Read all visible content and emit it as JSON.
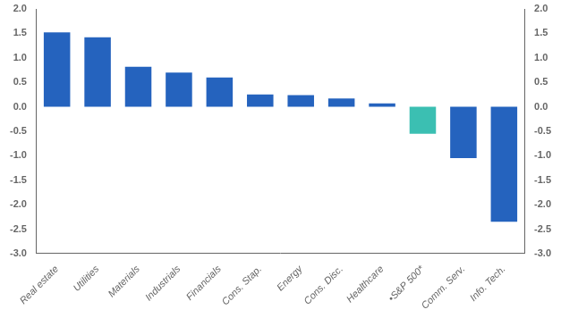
{
  "chart_data": {
    "type": "bar",
    "categories": [
      "Real estate",
      "Utilities",
      "Materials",
      "Industrials",
      "Financials",
      "Cons. Stap.",
      "Energy",
      "Cons. Disc.",
      "Healthcare",
      "•S&P 500*",
      "Comm. Serv.",
      "Info. Tech."
    ],
    "values": [
      1.52,
      1.42,
      0.82,
      0.7,
      0.6,
      0.25,
      0.24,
      0.17,
      0.07,
      -0.55,
      -1.05,
      -2.35
    ],
    "colors": [
      "#2563be",
      "#2563be",
      "#2563be",
      "#2563be",
      "#2563be",
      "#2563be",
      "#2563be",
      "#2563be",
      "#2563be",
      "#3bbfb2",
      "#2563be",
      "#2563be"
    ],
    "ylim": [
      -3.0,
      2.0
    ],
    "yticks": [
      {
        "value": -3.0,
        "label": "-3.0"
      },
      -2.5,
      {
        "value": -2.0,
        "label": "-2.0"
      },
      -1.5,
      {
        "value": -1.0,
        "label": "-1.0"
      },
      -0.5,
      {
        "value": 0.0,
        "label": "0.0"
      },
      0.5,
      {
        "value": 1.0,
        "label": "1.0"
      },
      1.5,
      {
        "value": 2.0,
        "label": "2.0"
      }
    ],
    "y2lim": [
      -3.0,
      2.0
    ],
    "y2ticks": [
      {
        "value": -3.0,
        "label": "-3.0"
      },
      -2.5,
      {
        "value": -2.0,
        "label": "-2.0"
      },
      -1.5,
      {
        "value": -1.0,
        "label": "-1.0"
      },
      -0.5,
      {
        "value": 0.0,
        "label": "0.0"
      },
      0.5,
      {
        "value": 1.0,
        "label": "1.0"
      },
      1.5,
      {
        "value": 2.0,
        "label": "2.0"
      }
    ],
    "grid": false
  }
}
